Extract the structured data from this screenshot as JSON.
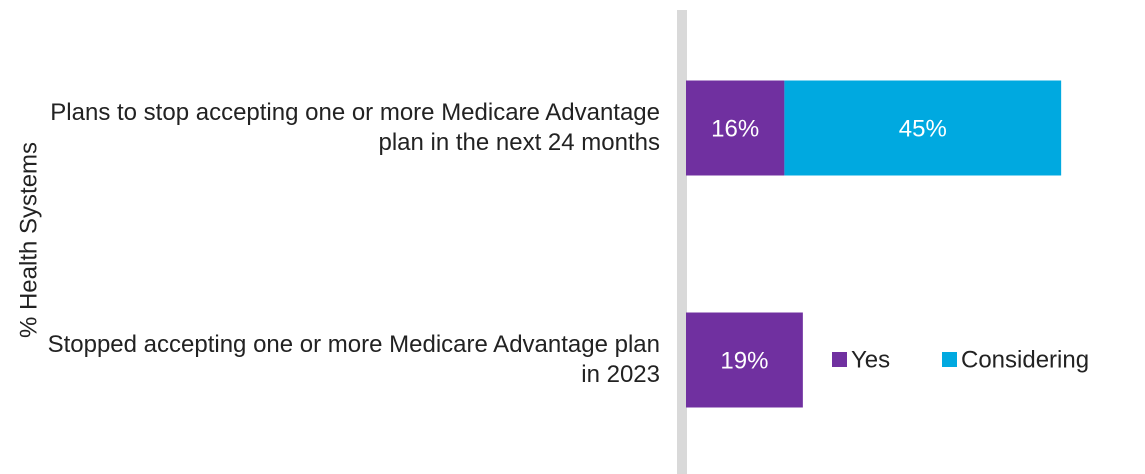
{
  "chart_data": {
    "type": "bar",
    "orientation": "horizontal",
    "stacked": true,
    "y_axis_label": "% Health Systems",
    "categories": [
      "Plans to stop accepting one or more Medicare Advantage plan in the next 24 months",
      "Stopped accepting one or more Medicare Advantage plan in 2023"
    ],
    "series": [
      {
        "name": "Yes",
        "color": "#7030a0",
        "values": [
          16,
          19
        ],
        "value_labels": [
          "16%",
          "19%"
        ]
      },
      {
        "name": "Considering",
        "color": "#00a9e0",
        "values": [
          45,
          null
        ],
        "value_labels": [
          "45%",
          null
        ]
      }
    ],
    "legend": "bottom-right"
  }
}
